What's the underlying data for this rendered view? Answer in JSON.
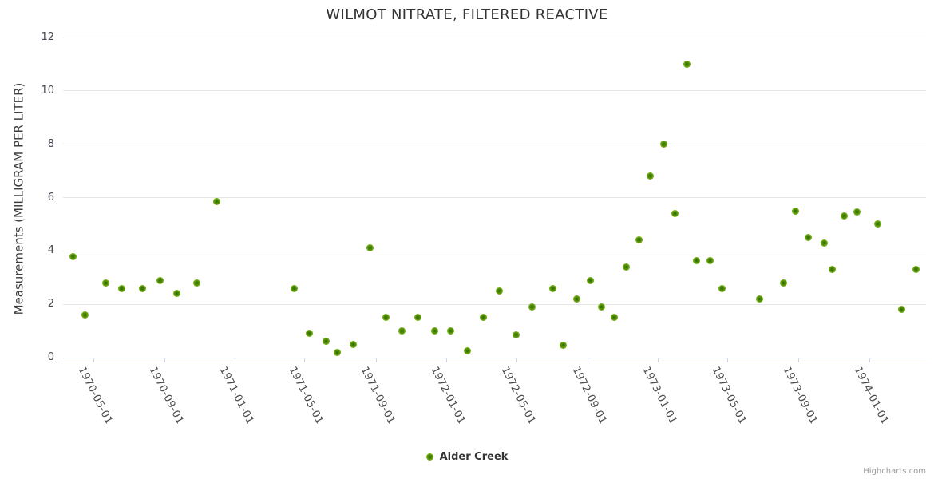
{
  "title": "WILMOT NITRATE, FILTERED REACTIVE",
  "credit": "Highcharts.com",
  "legend": {
    "series_label": "Alder Creek"
  },
  "colors": {
    "point_outer": "#8cc425",
    "point_inner": "#2c6a00",
    "grid": "#e6e6e6",
    "axis_line": "#ccd6eb",
    "title_text": "#333333",
    "axis_label_text": "#4a4a4a"
  },
  "chart_data": {
    "type": "scatter",
    "title": "WILMOT NITRATE, FILTERED REACTIVE",
    "xlabel": "",
    "ylabel": "Measurements (MILLIGRAM PER LITER)",
    "ylim": [
      0,
      12
    ],
    "y_ticks": [
      0,
      2,
      4,
      6,
      8,
      10,
      12
    ],
    "x_range": [
      "1970-03-10",
      "1974-04-09"
    ],
    "x_ticks": [
      "1970-05-01",
      "1970-09-01",
      "1971-01-01",
      "1971-05-01",
      "1971-09-01",
      "1972-01-01",
      "1972-05-01",
      "1972-09-01",
      "1973-01-01",
      "1973-05-01",
      "1973-09-01",
      "1974-01-01"
    ],
    "grid": true,
    "legend_position": "bottom",
    "series": [
      {
        "name": "Alder Creek",
        "points": [
          {
            "date": "1970-03-27",
            "value": 3.8
          },
          {
            "date": "1970-04-17",
            "value": 1.6
          },
          {
            "date": "1970-05-23",
            "value": 2.8
          },
          {
            "date": "1970-06-19",
            "value": 2.6
          },
          {
            "date": "1970-07-25",
            "value": 2.6
          },
          {
            "date": "1970-08-24",
            "value": 2.9
          },
          {
            "date": "1970-09-22",
            "value": 2.4
          },
          {
            "date": "1970-10-27",
            "value": 2.8
          },
          {
            "date": "1970-12-01",
            "value": 5.85
          },
          {
            "date": "1971-04-13",
            "value": 2.6
          },
          {
            "date": "1971-05-10",
            "value": 0.9
          },
          {
            "date": "1971-06-08",
            "value": 0.6
          },
          {
            "date": "1971-06-27",
            "value": 0.2
          },
          {
            "date": "1971-07-25",
            "value": 0.5
          },
          {
            "date": "1971-08-22",
            "value": 4.1
          },
          {
            "date": "1971-09-19",
            "value": 1.5
          },
          {
            "date": "1971-10-16",
            "value": 1.0
          },
          {
            "date": "1971-11-13",
            "value": 1.5
          },
          {
            "date": "1971-12-12",
            "value": 1.0
          },
          {
            "date": "1972-01-09",
            "value": 1.0
          },
          {
            "date": "1972-02-06",
            "value": 0.25
          },
          {
            "date": "1972-03-05",
            "value": 1.5
          },
          {
            "date": "1972-04-02",
            "value": 2.5
          },
          {
            "date": "1972-05-01",
            "value": 0.85
          },
          {
            "date": "1972-05-28",
            "value": 1.9
          },
          {
            "date": "1972-07-03",
            "value": 2.6
          },
          {
            "date": "1972-07-21",
            "value": 0.45
          },
          {
            "date": "1972-08-14",
            "value": 2.2
          },
          {
            "date": "1972-09-06",
            "value": 2.9
          },
          {
            "date": "1972-09-25",
            "value": 1.9
          },
          {
            "date": "1972-10-17",
            "value": 1.5
          },
          {
            "date": "1972-11-07",
            "value": 3.4
          },
          {
            "date": "1972-11-29",
            "value": 4.4
          },
          {
            "date": "1972-12-18",
            "value": 6.8
          },
          {
            "date": "1973-01-11",
            "value": 8.0
          },
          {
            "date": "1973-01-30",
            "value": 5.4
          },
          {
            "date": "1973-02-20",
            "value": 11.0
          },
          {
            "date": "1973-03-09",
            "value": 3.65
          },
          {
            "date": "1973-04-01",
            "value": 3.65
          },
          {
            "date": "1973-04-21",
            "value": 2.6
          },
          {
            "date": "1973-06-25",
            "value": 2.2
          },
          {
            "date": "1973-08-06",
            "value": 2.8
          },
          {
            "date": "1973-08-27",
            "value": 5.5
          },
          {
            "date": "1973-09-18",
            "value": 4.5
          },
          {
            "date": "1973-10-15",
            "value": 4.3
          },
          {
            "date": "1973-10-29",
            "value": 3.3
          },
          {
            "date": "1973-11-19",
            "value": 5.3
          },
          {
            "date": "1973-12-11",
            "value": 5.45
          },
          {
            "date": "1974-01-15",
            "value": 5.0
          },
          {
            "date": "1974-02-26",
            "value": 1.8
          },
          {
            "date": "1974-03-23",
            "value": 3.3
          }
        ]
      }
    ]
  }
}
